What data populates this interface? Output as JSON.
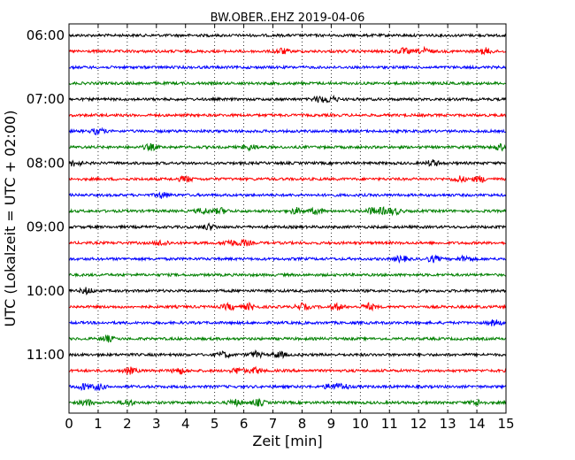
{
  "chart_data": {
    "type": "line",
    "title": "BW.OBER..EHZ 2019-04-06",
    "xlabel": "Zeit  [min]",
    "ylabel": "UTC (Lokalzeit = UTC + 02:00)",
    "xlim": [
      0,
      15
    ],
    "x_ticks": [
      "0",
      "1",
      "2",
      "3",
      "4",
      "5",
      "6",
      "7",
      "8",
      "9",
      "10",
      "11",
      "12",
      "13",
      "14",
      "15"
    ],
    "y_tick_labels": [
      "06:00",
      "07:00",
      "08:00",
      "09:00",
      "10:00",
      "11:00"
    ],
    "grid": "vertical dotted lines at every minute",
    "trace_interval_min": 15,
    "color_cycle": [
      "#000000",
      "#ff0000",
      "#0000ff",
      "#008000"
    ],
    "series": [
      {
        "start": "06:00",
        "events_min": []
      },
      {
        "start": "06:15",
        "events_min": [
          7.3,
          11.5,
          12.2,
          14.3
        ]
      },
      {
        "start": "06:30",
        "events_min": []
      },
      {
        "start": "06:45",
        "events_min": []
      },
      {
        "start": "07:00",
        "events_min": [
          8.6,
          9.0
        ]
      },
      {
        "start": "07:15",
        "events_min": []
      },
      {
        "start": "07:30",
        "events_min": [
          1.0
        ]
      },
      {
        "start": "07:45",
        "events_min": [
          2.8,
          6.2,
          14.8
        ]
      },
      {
        "start": "08:00",
        "events_min": [
          0.2,
          12.5
        ]
      },
      {
        "start": "08:15",
        "events_min": [
          4.0,
          13.4,
          14.1
        ]
      },
      {
        "start": "08:30",
        "events_min": [
          3.2
        ]
      },
      {
        "start": "08:45",
        "events_min": [
          4.6,
          5.2,
          7.8,
          8.5,
          10.4,
          10.8,
          11.2
        ]
      },
      {
        "start": "09:00",
        "events_min": [
          4.8
        ]
      },
      {
        "start": "09:15",
        "events_min": [
          3.2,
          5.5,
          6.0
        ]
      },
      {
        "start": "09:30",
        "events_min": [
          11.4,
          12.5,
          13.6
        ]
      },
      {
        "start": "09:45",
        "events_min": []
      },
      {
        "start": "10:00",
        "events_min": [
          0.6
        ]
      },
      {
        "start": "10:15",
        "events_min": [
          5.5,
          6.2,
          8.0,
          9.2,
          10.3
        ]
      },
      {
        "start": "10:30",
        "events_min": [
          14.6
        ]
      },
      {
        "start": "10:45",
        "events_min": [
          1.3
        ]
      },
      {
        "start": "11:00",
        "events_min": [
          5.3,
          6.4,
          7.2
        ]
      },
      {
        "start": "11:15",
        "events_min": [
          2.1,
          3.8,
          5.8,
          6.4
        ]
      },
      {
        "start": "11:30",
        "events_min": [
          0.5,
          1.0,
          9.0,
          9.4
        ]
      },
      {
        "start": "11:45",
        "events_min": [
          0.6,
          2.0,
          5.7,
          6.5,
          14.0
        ]
      }
    ]
  }
}
